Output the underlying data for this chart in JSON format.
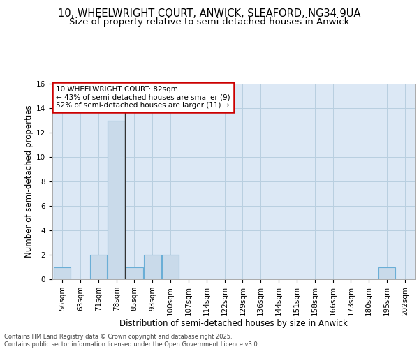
{
  "title1": "10, WHEELWRIGHT COURT, ANWICK, SLEAFORD, NG34 9UA",
  "title2": "Size of property relative to semi-detached houses in Anwick",
  "xlabel": "Distribution of semi-detached houses by size in Anwick",
  "ylabel": "Number of semi-detached properties",
  "bins": [
    "56sqm",
    "63sqm",
    "71sqm",
    "78sqm",
    "85sqm",
    "93sqm",
    "100sqm",
    "107sqm",
    "114sqm",
    "122sqm",
    "129sqm",
    "136sqm",
    "144sqm",
    "151sqm",
    "158sqm",
    "166sqm",
    "173sqm",
    "180sqm",
    "195sqm",
    "202sqm"
  ],
  "values": [
    1,
    0,
    2,
    13,
    1,
    2,
    2,
    0,
    0,
    0,
    0,
    0,
    0,
    0,
    0,
    0,
    0,
    0,
    1,
    0
  ],
  "bar_color": "#c9daea",
  "bar_edge_color": "#6aaed6",
  "highlight_bin_index": 3,
  "highlight_line_color": "#333333",
  "annotation_text": "10 WHEELWRIGHT COURT: 82sqm\n← 43% of semi-detached houses are smaller (9)\n52% of semi-detached houses are larger (11) →",
  "annotation_box_facecolor": "#ffffff",
  "annotation_box_edgecolor": "#cc0000",
  "ylim": [
    0,
    16
  ],
  "yticks": [
    0,
    2,
    4,
    6,
    8,
    10,
    12,
    14,
    16
  ],
  "axes_facecolor": "#dce8f5",
  "background_color": "#ffffff",
  "grid_color": "#b8cfe0",
  "footer_text": "Contains HM Land Registry data © Crown copyright and database right 2025.\nContains public sector information licensed under the Open Government Licence v3.0.",
  "title1_fontsize": 10.5,
  "title2_fontsize": 9.5,
  "xlabel_fontsize": 8.5,
  "ylabel_fontsize": 8.5,
  "annotation_fontsize": 7.5,
  "tick_fontsize": 7.5
}
